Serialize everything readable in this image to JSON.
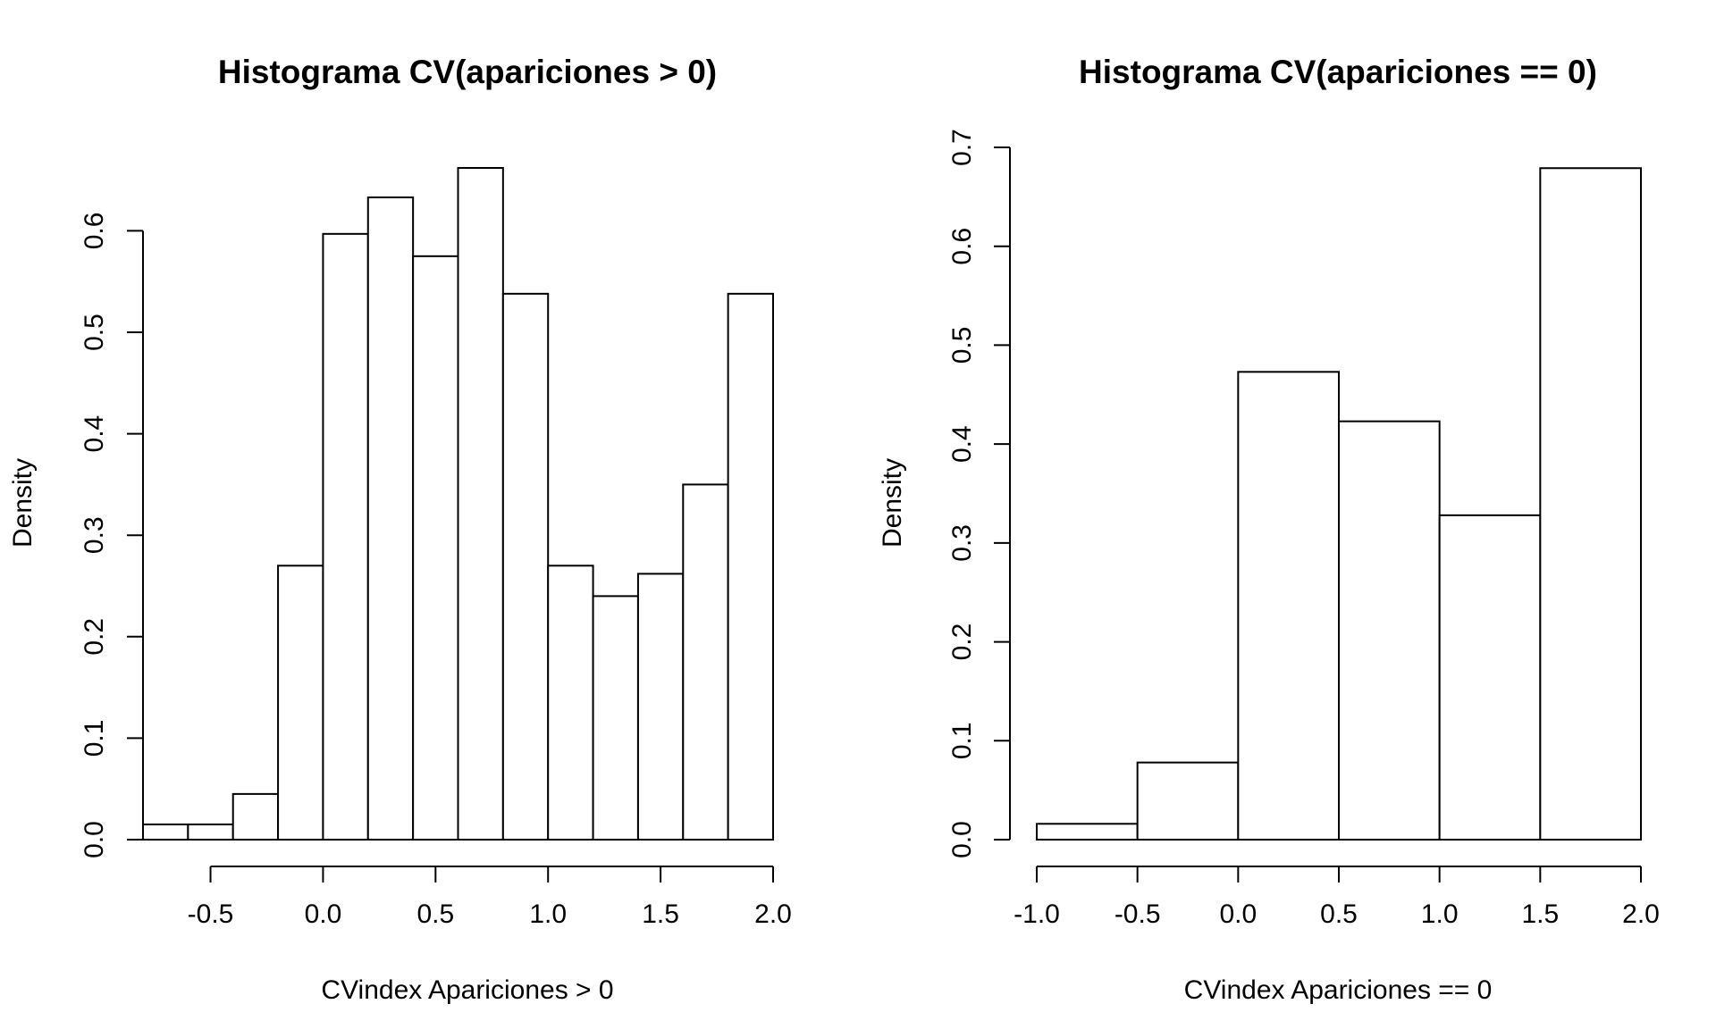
{
  "chart_data": [
    {
      "type": "bar",
      "title": "Histograma CV(apariciones > 0)",
      "xlabel": "CVindex Apariciones > 0",
      "ylabel": "Density",
      "bin_edges": [
        -0.8,
        -0.6,
        -0.4,
        -0.2,
        0.0,
        0.2,
        0.4,
        0.6,
        0.8,
        1.0,
        1.2,
        1.4,
        1.6,
        1.8,
        2.0
      ],
      "values": [
        0.015,
        0.015,
        0.045,
        0.27,
        0.597,
        0.633,
        0.575,
        0.662,
        0.538,
        0.27,
        0.24,
        0.262,
        0.35,
        0.538
      ],
      "xticks": [
        "-0.5",
        "0.0",
        "0.5",
        "1.0",
        "1.5",
        "2.0"
      ],
      "xtick_values": [
        -0.5,
        0.0,
        0.5,
        1.0,
        1.5,
        2.0
      ],
      "yticks": [
        "0.0",
        "0.1",
        "0.2",
        "0.3",
        "0.4",
        "0.5",
        "0.6"
      ],
      "ytick_values": [
        0.0,
        0.1,
        0.2,
        0.3,
        0.4,
        0.5,
        0.6
      ],
      "xlim": [
        -0.8,
        2.0
      ],
      "ylim": [
        0,
        0.662
      ],
      "grid": false
    },
    {
      "type": "bar",
      "title": "Histograma CV(apariciones == 0)",
      "xlabel": "CVindex Apariciones == 0",
      "ylabel": "Density",
      "bin_edges": [
        -1.0,
        -0.5,
        0.0,
        0.5,
        1.0,
        1.5,
        2.0
      ],
      "values": [
        0.016,
        0.078,
        0.473,
        0.423,
        0.328,
        0.679
      ],
      "xticks": [
        "-1.0",
        "-0.5",
        "0.0",
        "0.5",
        "1.0",
        "1.5",
        "2.0"
      ],
      "xtick_values": [
        -1.0,
        -0.5,
        0.0,
        0.5,
        1.0,
        1.5,
        2.0
      ],
      "yticks": [
        "0.0",
        "0.1",
        "0.2",
        "0.3",
        "0.4",
        "0.5",
        "0.6",
        "0.7"
      ],
      "ytick_values": [
        0.0,
        0.1,
        0.2,
        0.3,
        0.4,
        0.5,
        0.6,
        0.7
      ],
      "xlim": [
        -1.0,
        2.0
      ],
      "ylim": [
        0,
        0.7
      ],
      "grid": false
    }
  ]
}
